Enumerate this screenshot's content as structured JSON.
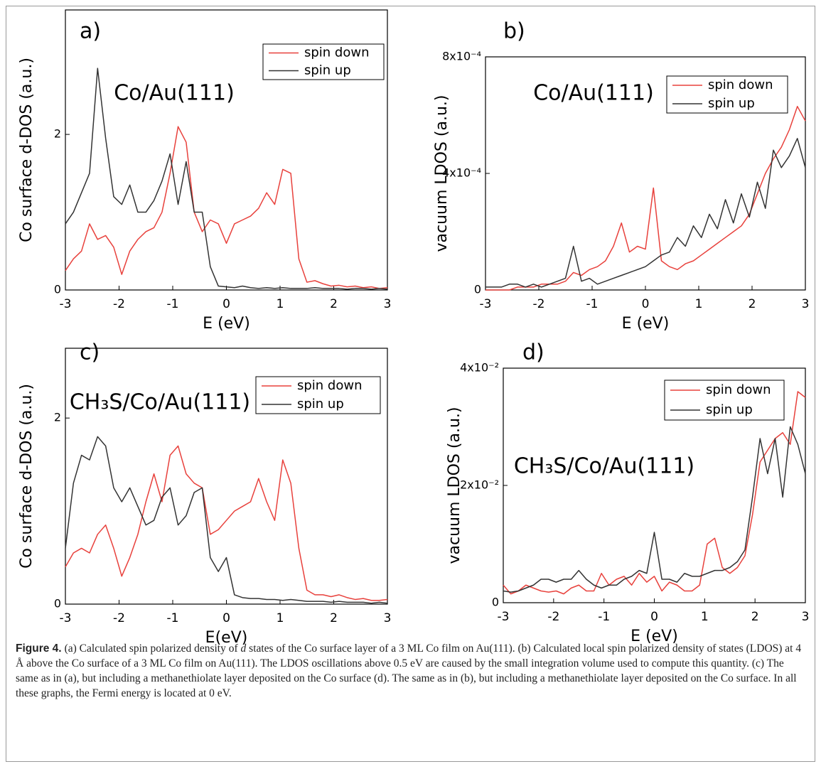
{
  "chart_data": [
    {
      "type": "line",
      "panel_label": "a)",
      "annotation": "Co/Au(111)",
      "xlabel": "E (eV)",
      "ylabel": "Co surface d-DOS (a.u.)",
      "x": [
        -3,
        -2.85,
        -2.7,
        -2.55,
        -2.4,
        -2.25,
        -2.1,
        -1.95,
        -1.8,
        -1.65,
        -1.5,
        -1.35,
        -1.2,
        -1.05,
        -0.9,
        -0.75,
        -0.6,
        -0.45,
        -0.3,
        -0.15,
        0,
        0.15,
        0.3,
        0.45,
        0.6,
        0.75,
        0.9,
        1.05,
        1.2,
        1.35,
        1.5,
        1.65,
        1.8,
        1.95,
        2.1,
        2.25,
        2.4,
        2.55,
        2.7,
        2.85,
        3
      ],
      "series": [
        {
          "name": "spin down",
          "color": "#e8413c",
          "values": [
            0.25,
            0.4,
            0.5,
            0.85,
            0.65,
            0.7,
            0.55,
            0.2,
            0.5,
            0.65,
            0.75,
            0.8,
            1.0,
            1.5,
            2.1,
            1.9,
            1.0,
            0.75,
            0.9,
            0.85,
            0.6,
            0.85,
            0.9,
            0.95,
            1.05,
            1.25,
            1.1,
            1.55,
            1.5,
            0.4,
            0.1,
            0.12,
            0.08,
            0.05,
            0.06,
            0.04,
            0.05,
            0.03,
            0.04,
            0.02,
            0.03
          ]
        },
        {
          "name": "spin up",
          "color": "#333333",
          "values": [
            0.85,
            1.0,
            1.25,
            1.5,
            2.85,
            1.95,
            1.2,
            1.1,
            1.35,
            1.0,
            1.0,
            1.15,
            1.4,
            1.75,
            1.1,
            1.65,
            1.0,
            1.0,
            0.3,
            0.05,
            0.04,
            0.03,
            0.05,
            0.03,
            0.02,
            0.03,
            0.02,
            0.03,
            0.02,
            0.02,
            0.02,
            0.03,
            0.02,
            0.02,
            0.02,
            0.01,
            0.02,
            0.02,
            0.01,
            0.02,
            0.01
          ]
        }
      ],
      "xlim": [
        -3,
        3
      ],
      "ylim": [
        0,
        3.6
      ],
      "xticks": [
        -3,
        -2,
        -1,
        0,
        1,
        2,
        3
      ],
      "yticks": [
        0,
        2
      ],
      "legend": "upper right"
    },
    {
      "type": "line",
      "panel_label": "b)",
      "annotation": "Co/Au(111)",
      "xlabel": "E (eV)",
      "ylabel": "vacuum LDOS (a.u.)",
      "x": [
        -3,
        -2.85,
        -2.7,
        -2.55,
        -2.4,
        -2.25,
        -2.1,
        -1.95,
        -1.8,
        -1.65,
        -1.5,
        -1.35,
        -1.2,
        -1.05,
        -0.9,
        -0.75,
        -0.6,
        -0.45,
        -0.3,
        -0.15,
        0,
        0.15,
        0.3,
        0.45,
        0.6,
        0.75,
        0.9,
        1.05,
        1.2,
        1.35,
        1.5,
        1.65,
        1.8,
        1.95,
        2.1,
        2.25,
        2.4,
        2.55,
        2.7,
        2.85,
        3
      ],
      "series": [
        {
          "name": "spin down",
          "color": "#e8413c",
          "values": [
            0,
            0,
            0,
            0,
            1e-05,
            1e-05,
            1e-05,
            2e-05,
            2e-05,
            2e-05,
            3e-05,
            6e-05,
            5e-05,
            7e-05,
            8e-05,
            0.0001,
            0.00015,
            0.00023,
            0.00013,
            0.00015,
            0.00014,
            0.00035,
            0.0001,
            8e-05,
            7e-05,
            9e-05,
            0.0001,
            0.00012,
            0.00014,
            0.00016,
            0.00018,
            0.0002,
            0.00022,
            0.00026,
            0.00033,
            0.0004,
            0.00045,
            0.00049,
            0.00055,
            0.00063,
            0.00058
          ]
        },
        {
          "name": "spin up",
          "color": "#333333",
          "values": [
            1e-05,
            1e-05,
            1e-05,
            2e-05,
            2e-05,
            1e-05,
            2e-05,
            1e-05,
            2e-05,
            3e-05,
            4e-05,
            0.00015,
            3e-05,
            4e-05,
            2e-05,
            3e-05,
            4e-05,
            5e-05,
            6e-05,
            7e-05,
            8e-05,
            0.0001,
            0.00012,
            0.00013,
            0.00018,
            0.00015,
            0.00022,
            0.00018,
            0.00026,
            0.00021,
            0.00031,
            0.00023,
            0.00033,
            0.00025,
            0.00037,
            0.00028,
            0.00048,
            0.00042,
            0.00046,
            0.00052,
            0.00042
          ]
        }
      ],
      "xlim": [
        -3,
        3
      ],
      "ylim": [
        0,
        0.0008
      ],
      "xticks": [
        -3,
        -2,
        -1,
        0,
        1,
        2,
        3
      ],
      "yticks": [
        0,
        {
          "value": 0.0004,
          "label": "4x10⁻⁴"
        },
        {
          "value": 0.0008,
          "label": "8x10⁻⁴"
        }
      ],
      "legend": "upper right"
    },
    {
      "type": "line",
      "panel_label": "c)",
      "annotation": "CH₃S/Co/Au(111)",
      "xlabel": "E(eV)",
      "ylabel": "Co surface d-DOS (a.u.)",
      "x": [
        -3,
        -2.85,
        -2.7,
        -2.55,
        -2.4,
        -2.25,
        -2.1,
        -1.95,
        -1.8,
        -1.65,
        -1.5,
        -1.35,
        -1.2,
        -1.05,
        -0.9,
        -0.75,
        -0.6,
        -0.45,
        -0.3,
        -0.15,
        0,
        0.15,
        0.3,
        0.45,
        0.6,
        0.75,
        0.9,
        1.05,
        1.2,
        1.35,
        1.5,
        1.65,
        1.8,
        1.95,
        2.1,
        2.25,
        2.4,
        2.55,
        2.7,
        2.85,
        3
      ],
      "series": [
        {
          "name": "spin down",
          "color": "#e8413c",
          "values": [
            0.4,
            0.55,
            0.6,
            0.55,
            0.75,
            0.85,
            0.6,
            0.3,
            0.5,
            0.75,
            1.1,
            1.4,
            1.1,
            1.6,
            1.7,
            1.4,
            1.3,
            1.25,
            0.75,
            0.8,
            0.9,
            1.0,
            1.05,
            1.1,
            1.35,
            1.1,
            0.9,
            1.55,
            1.3,
            0.6,
            0.15,
            0.1,
            0.1,
            0.08,
            0.1,
            0.07,
            0.05,
            0.06,
            0.04,
            0.04,
            0.05
          ]
        },
        {
          "name": "spin up",
          "color": "#333333",
          "values": [
            0.6,
            1.3,
            1.6,
            1.55,
            1.8,
            1.7,
            1.25,
            1.1,
            1.25,
            1.05,
            0.85,
            0.9,
            1.15,
            1.25,
            0.85,
            0.95,
            1.2,
            1.25,
            0.5,
            0.35,
            0.5,
            0.1,
            0.07,
            0.06,
            0.06,
            0.05,
            0.05,
            0.04,
            0.05,
            0.04,
            0.03,
            0.03,
            0.03,
            0.02,
            0.03,
            0.02,
            0.02,
            0.02,
            0.01,
            0.02,
            0.01
          ]
        }
      ],
      "xlim": [
        -3,
        3
      ],
      "ylim": [
        0,
        2.75
      ],
      "xticks": [
        -3,
        -2,
        -1,
        0,
        1,
        2,
        3
      ],
      "yticks": [
        0,
        2
      ],
      "legend": "upper right"
    },
    {
      "type": "line",
      "panel_label": "d)",
      "annotation": "CH₃S/Co/Au(111)",
      "xlabel": "E (eV)",
      "ylabel": "vacuum LDOS (a.u.)",
      "x": [
        -3,
        -2.85,
        -2.7,
        -2.55,
        -2.4,
        -2.25,
        -2.1,
        -1.95,
        -1.8,
        -1.65,
        -1.5,
        -1.35,
        -1.2,
        -1.05,
        -0.9,
        -0.75,
        -0.6,
        -0.45,
        -0.3,
        -0.15,
        0,
        0.15,
        0.3,
        0.45,
        0.6,
        0.75,
        0.9,
        1.05,
        1.2,
        1.35,
        1.5,
        1.65,
        1.8,
        1.95,
        2.1,
        2.25,
        2.4,
        2.55,
        2.7,
        2.85,
        3
      ],
      "series": [
        {
          "name": "spin down",
          "color": "#e8413c",
          "values": [
            0.003,
            0.0015,
            0.002,
            0.003,
            0.0025,
            0.002,
            0.0018,
            0.002,
            0.0015,
            0.0025,
            0.003,
            0.002,
            0.002,
            0.005,
            0.003,
            0.004,
            0.0045,
            0.003,
            0.005,
            0.0035,
            0.0045,
            0.002,
            0.0035,
            0.003,
            0.002,
            0.002,
            0.003,
            0.01,
            0.011,
            0.006,
            0.005,
            0.006,
            0.008,
            0.015,
            0.024,
            0.026,
            0.028,
            0.029,
            0.027,
            0.036,
            0.035
          ]
        },
        {
          "name": "spin up",
          "color": "#333333",
          "values": [
            0.002,
            0.0018,
            0.002,
            0.0025,
            0.003,
            0.004,
            0.004,
            0.0035,
            0.004,
            0.004,
            0.0055,
            0.004,
            0.003,
            0.0025,
            0.003,
            0.003,
            0.004,
            0.0045,
            0.0055,
            0.005,
            0.012,
            0.004,
            0.004,
            0.0035,
            0.005,
            0.0045,
            0.0045,
            0.005,
            0.0055,
            0.0055,
            0.006,
            0.007,
            0.009,
            0.018,
            0.028,
            0.022,
            0.028,
            0.018,
            0.03,
            0.027,
            0.022
          ]
        }
      ],
      "xlim": [
        -3,
        3
      ],
      "ylim": [
        0,
        0.04
      ],
      "xticks": [
        -3,
        -2,
        -1,
        0,
        1,
        2,
        3
      ],
      "yticks": [
        0,
        {
          "value": 0.02,
          "label": "2x10⁻²"
        },
        {
          "value": 0.04,
          "label": "4x10⁻²"
        }
      ],
      "legend": "upper right"
    }
  ],
  "caption": {
    "label": "Figure 4.",
    "parts": [
      "(a) Calculated spin polarized density of ",
      "d",
      " states of the Co surface layer of a 3 ML Co film on Au(111). (b) Calculated local spin polarized density of states (LDOS) at 4 Å  above the Co surface of a 3 ML Co film on Au(111). The LDOS oscillations above 0.5 eV are caused by the small integration volume used to compute this quantity. (c) The same as in (a), but including a methanethiolate layer deposited on the Co surface (d). The same as in (b), but including a methanethiolate layer deposited on the Co surface. In all these graphs, the Fermi energy is located at 0 eV."
    ]
  }
}
